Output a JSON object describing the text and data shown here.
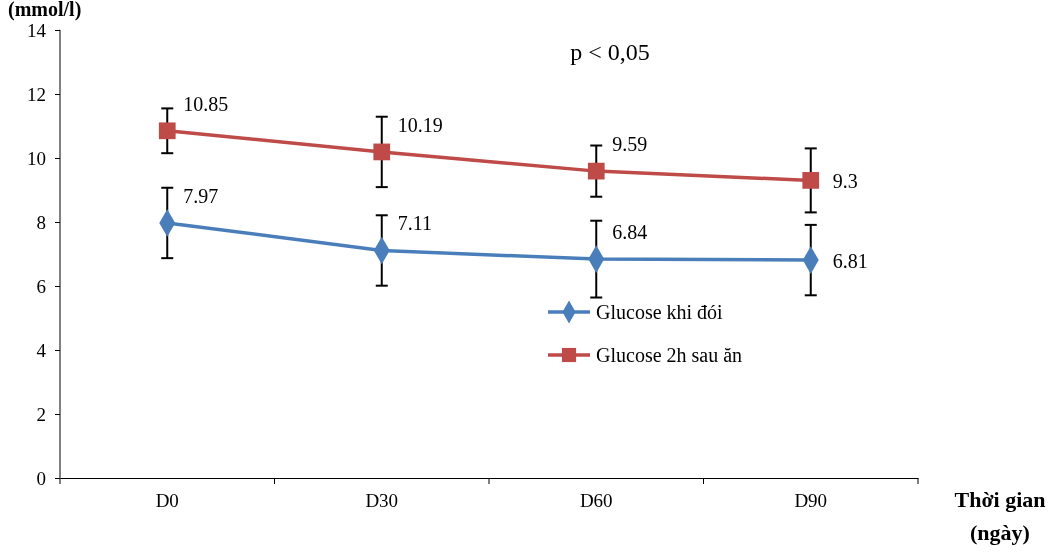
{
  "chart_data": {
    "type": "line",
    "ylabel": "(mmol/l)",
    "xlabel": "Thời gian (ngày)",
    "annotations": [
      "p < 0,05"
    ],
    "categories": [
      "D0",
      "D30",
      "D60",
      "D90"
    ],
    "series": [
      {
        "name": "Glucose khi đói",
        "color": "#4a7ebb",
        "values": [
          7.97,
          7.11,
          6.84,
          6.81
        ],
        "errors": [
          1.1,
          1.1,
          1.2,
          1.1
        ],
        "marker": "diamond"
      },
      {
        "name": "Glucose 2h sau ăn",
        "color": "#be4b48",
        "values": [
          10.85,
          10.19,
          9.59,
          9.3
        ],
        "errors": [
          0.7,
          1.1,
          0.8,
          1.0
        ],
        "marker": "square"
      }
    ],
    "data_labels": true,
    "ylim": [
      0,
      14
    ],
    "yticks": [
      0,
      2,
      4,
      6,
      8,
      10,
      12,
      14
    ],
    "grid": false,
    "legend": "right"
  }
}
